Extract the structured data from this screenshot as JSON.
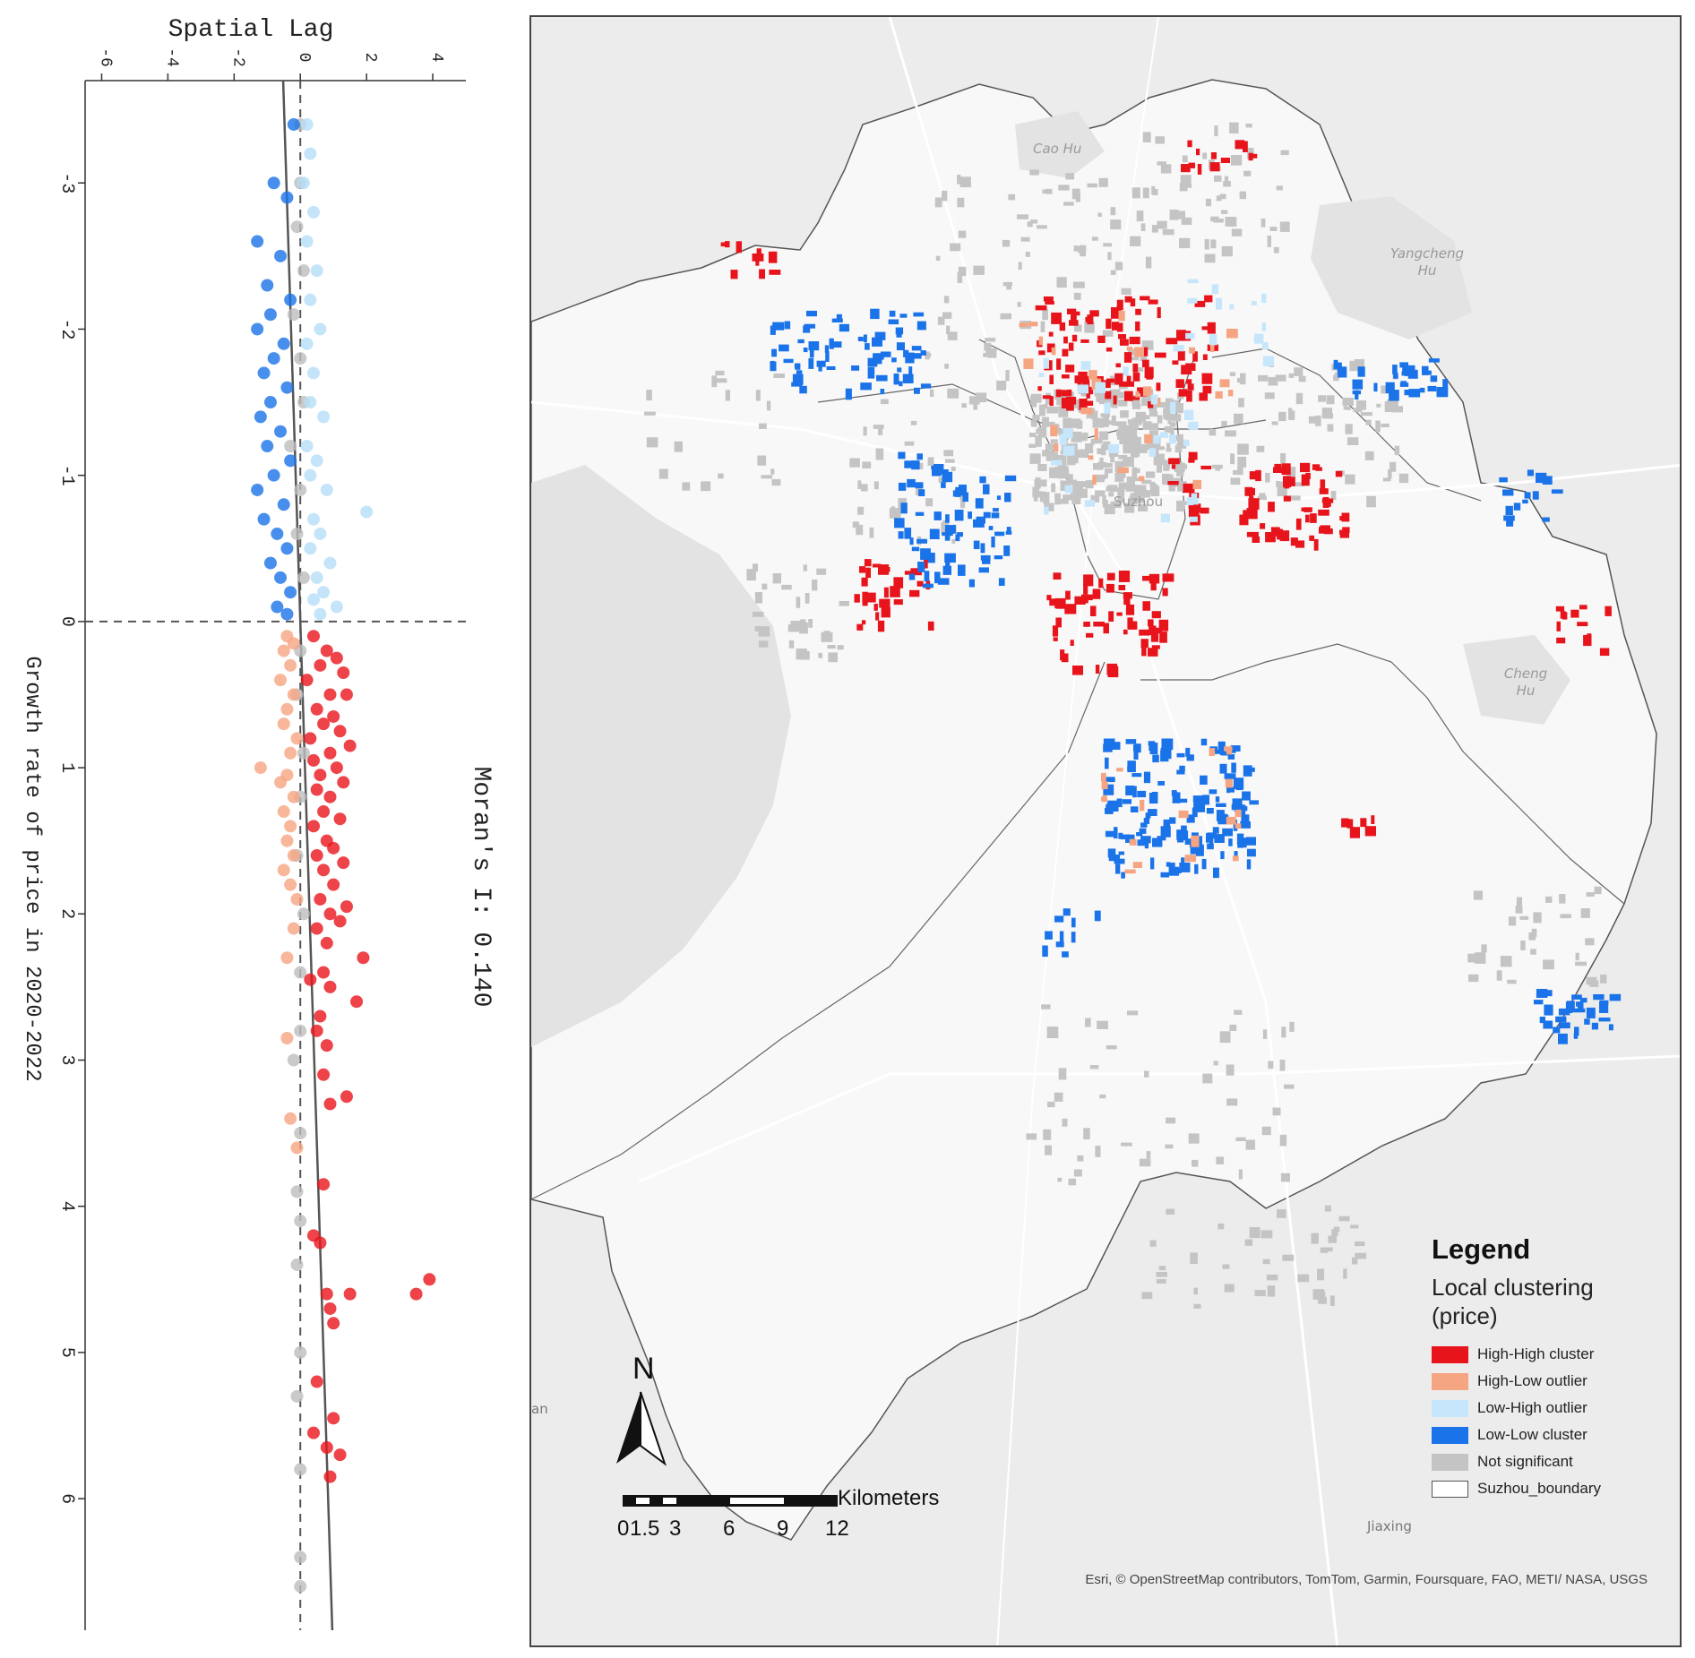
{
  "chart_data": {
    "type": "scatter",
    "title": "Moran's I: 0.140",
    "xlabel": "Growth rate of price in 2020-2022",
    "ylabel": "Spatial Lag",
    "orientation": "rotated-90-clockwise",
    "xlim": [
      -3.7,
      6.9
    ],
    "ylim": [
      -6.5,
      5
    ],
    "x_ticks": [
      -3,
      -2,
      -1,
      0,
      1,
      2,
      3,
      4,
      5,
      6
    ],
    "y_ticks": [
      -6,
      -4,
      -2,
      0,
      2,
      4
    ],
    "x_tick_labels": [
      "-3",
      "-2",
      "-1",
      "0",
      "1",
      "2",
      "3",
      "4",
      "5",
      "6"
    ],
    "y_tick_labels": [
      "-6",
      "-4",
      "-2",
      "0",
      "2",
      "4"
    ],
    "regression_slope": 0.14,
    "categories": [
      "High-High cluster",
      "High-Low outlier",
      "Low-High outlier",
      "Low-Low cluster",
      "Not significant"
    ],
    "category_colors": [
      "#e8141c",
      "#f6a582",
      "#b5dff8",
      "#1a73e8",
      "#bdbdbd"
    ],
    "series": [
      {
        "name": "High-High cluster",
        "points": [
          [
            0.1,
            0.4
          ],
          [
            0.2,
            0.8
          ],
          [
            0.25,
            1.1
          ],
          [
            0.3,
            0.6
          ],
          [
            0.35,
            1.3
          ],
          [
            0.4,
            0.2
          ],
          [
            0.5,
            0.9
          ],
          [
            0.5,
            1.4
          ],
          [
            0.6,
            0.5
          ],
          [
            0.65,
            1.0
          ],
          [
            0.7,
            0.7
          ],
          [
            0.75,
            1.2
          ],
          [
            0.8,
            0.3
          ],
          [
            0.85,
            1.5
          ],
          [
            0.9,
            0.9
          ],
          [
            0.95,
            0.4
          ],
          [
            1.0,
            1.1
          ],
          [
            1.05,
            0.6
          ],
          [
            1.1,
            1.3
          ],
          [
            1.15,
            0.5
          ],
          [
            1.2,
            0.9
          ],
          [
            1.3,
            0.7
          ],
          [
            1.35,
            1.2
          ],
          [
            1.4,
            0.4
          ],
          [
            1.5,
            0.8
          ],
          [
            1.55,
            1.0
          ],
          [
            1.6,
            0.5
          ],
          [
            1.65,
            1.3
          ],
          [
            1.7,
            0.7
          ],
          [
            1.8,
            1.0
          ],
          [
            1.9,
            0.6
          ],
          [
            1.95,
            1.4
          ],
          [
            2.0,
            0.9
          ],
          [
            2.05,
            1.2
          ],
          [
            2.1,
            0.5
          ],
          [
            2.2,
            0.8
          ],
          [
            2.3,
            1.9
          ],
          [
            2.4,
            0.7
          ],
          [
            2.45,
            0.3
          ],
          [
            2.5,
            0.9
          ],
          [
            2.6,
            1.7
          ],
          [
            2.7,
            0.6
          ],
          [
            2.8,
            0.5
          ],
          [
            2.9,
            0.8
          ],
          [
            3.1,
            0.7
          ],
          [
            3.25,
            1.4
          ],
          [
            3.3,
            0.9
          ],
          [
            3.85,
            0.7
          ],
          [
            4.2,
            0.4
          ],
          [
            4.25,
            0.6
          ],
          [
            4.5,
            3.9
          ],
          [
            4.6,
            3.5
          ],
          [
            4.6,
            0.8
          ],
          [
            4.6,
            1.5
          ],
          [
            4.7,
            0.9
          ],
          [
            4.8,
            1.0
          ],
          [
            5.2,
            0.5
          ],
          [
            5.45,
            1.0
          ],
          [
            5.55,
            0.4
          ],
          [
            5.65,
            0.8
          ],
          [
            5.7,
            1.2
          ],
          [
            5.85,
            0.9
          ]
        ]
      },
      {
        "name": "High-Low outlier",
        "points": [
          [
            0.1,
            -0.4
          ],
          [
            0.15,
            -0.2
          ],
          [
            0.2,
            -0.5
          ],
          [
            0.3,
            -0.3
          ],
          [
            0.4,
            -0.6
          ],
          [
            0.5,
            -0.2
          ],
          [
            0.6,
            -0.4
          ],
          [
            0.7,
            -0.5
          ],
          [
            0.8,
            -0.1
          ],
          [
            0.9,
            -0.3
          ],
          [
            1.0,
            -1.2
          ],
          [
            1.05,
            -0.4
          ],
          [
            1.1,
            -0.6
          ],
          [
            1.2,
            -0.2
          ],
          [
            1.3,
            -0.5
          ],
          [
            1.4,
            -0.3
          ],
          [
            1.5,
            -0.4
          ],
          [
            1.6,
            -0.2
          ],
          [
            1.7,
            -0.5
          ],
          [
            1.8,
            -0.3
          ],
          [
            1.9,
            -0.1
          ],
          [
            2.1,
            -0.2
          ],
          [
            2.3,
            -0.4
          ],
          [
            2.85,
            -0.4
          ],
          [
            3.4,
            -0.3
          ],
          [
            3.6,
            -0.1
          ]
        ]
      },
      {
        "name": "Low-High outlier",
        "points": [
          [
            -3.4,
            0.2
          ],
          [
            -3.2,
            0.3
          ],
          [
            -3.0,
            0.1
          ],
          [
            -2.8,
            0.4
          ],
          [
            -2.6,
            0.2
          ],
          [
            -2.4,
            0.5
          ],
          [
            -2.2,
            0.3
          ],
          [
            -2.0,
            0.6
          ],
          [
            -1.9,
            0.2
          ],
          [
            -1.7,
            0.4
          ],
          [
            -1.5,
            0.3
          ],
          [
            -1.4,
            0.7
          ],
          [
            -1.2,
            0.2
          ],
          [
            -1.1,
            0.5
          ],
          [
            -1.0,
            0.3
          ],
          [
            -0.9,
            0.8
          ],
          [
            -0.75,
            2.0
          ],
          [
            -0.7,
            0.4
          ],
          [
            -0.6,
            0.6
          ],
          [
            -0.5,
            0.3
          ],
          [
            -0.4,
            0.9
          ],
          [
            -0.3,
            0.5
          ],
          [
            -0.2,
            0.7
          ],
          [
            -0.15,
            0.4
          ],
          [
            -0.1,
            1.1
          ],
          [
            -0.05,
            0.6
          ]
        ]
      },
      {
        "name": "Low-Low cluster",
        "points": [
          [
            -3.4,
            -0.2
          ],
          [
            -3.0,
            -0.8
          ],
          [
            -2.9,
            -0.4
          ],
          [
            -2.6,
            -1.3
          ],
          [
            -2.5,
            -0.6
          ],
          [
            -2.3,
            -1.0
          ],
          [
            -2.2,
            -0.3
          ],
          [
            -2.1,
            -0.9
          ],
          [
            -2.0,
            -1.3
          ],
          [
            -1.9,
            -0.5
          ],
          [
            -1.8,
            -0.8
          ],
          [
            -1.7,
            -1.1
          ],
          [
            -1.6,
            -0.4
          ],
          [
            -1.5,
            -0.9
          ],
          [
            -1.4,
            -1.2
          ],
          [
            -1.3,
            -0.6
          ],
          [
            -1.2,
            -1.0
          ],
          [
            -1.1,
            -0.3
          ],
          [
            -1.0,
            -0.8
          ],
          [
            -0.9,
            -1.3
          ],
          [
            -0.8,
            -0.5
          ],
          [
            -0.7,
            -1.1
          ],
          [
            -0.6,
            -0.7
          ],
          [
            -0.5,
            -0.4
          ],
          [
            -0.4,
            -0.9
          ],
          [
            -0.3,
            -0.6
          ],
          [
            -0.2,
            -0.3
          ],
          [
            -0.1,
            -0.7
          ],
          [
            -0.05,
            -0.4
          ]
        ]
      },
      {
        "name": "Not significant",
        "points": [
          [
            -3.4,
            0.0
          ],
          [
            -3.0,
            0.0
          ],
          [
            -2.7,
            -0.1
          ],
          [
            -2.4,
            0.1
          ],
          [
            -2.1,
            -0.2
          ],
          [
            -1.8,
            0.0
          ],
          [
            -1.5,
            0.1
          ],
          [
            -1.2,
            -0.3
          ],
          [
            -0.9,
            0.0
          ],
          [
            -0.6,
            -0.1
          ],
          [
            -0.3,
            0.1
          ],
          [
            0.2,
            0.0
          ],
          [
            0.5,
            -0.1
          ],
          [
            0.9,
            0.1
          ],
          [
            1.2,
            0.0
          ],
          [
            1.6,
            -0.1
          ],
          [
            2.0,
            0.1
          ],
          [
            2.4,
            0.0
          ],
          [
            2.8,
            0.0
          ],
          [
            3.0,
            -0.2
          ],
          [
            3.5,
            0.0
          ],
          [
            3.9,
            -0.1
          ],
          [
            4.1,
            0.0
          ],
          [
            4.4,
            -0.1
          ],
          [
            5.0,
            0.0
          ],
          [
            5.3,
            -0.1
          ],
          [
            5.8,
            0.0
          ],
          [
            6.4,
            0.0
          ],
          [
            6.6,
            0.0
          ]
        ]
      }
    ]
  },
  "map": {
    "places": [
      "Cao Hu",
      "Yangcheng Hu",
      "Suzhou",
      "Cheng Hu",
      "Jiaxing",
      "an"
    ],
    "legend": {
      "title": "Legend",
      "subtitle": "Local clustering (price)",
      "items": [
        {
          "label": "High-High cluster",
          "color": "#e8141c"
        },
        {
          "label": "High-Low outlier",
          "color": "#f6a582"
        },
        {
          "label": "Low-High outlier",
          "color": "#c6e6fb"
        },
        {
          "label": "Low-Low cluster",
          "color": "#1a73e8"
        },
        {
          "label": "Not significant",
          "color": "#c4c4c4"
        },
        {
          "label": "Suzhou_boundary",
          "color": "#ffffff"
        }
      ]
    },
    "north_label": "N",
    "scale_units": "Kilometers",
    "scale_ticks": [
      "0",
      "1.5",
      "3",
      "6",
      "9",
      "12"
    ],
    "attribution": "Esri, © OpenStreetMap contributors, TomTom, Garmin, Foursquare, FAO, METI/ NASA, USGS"
  }
}
